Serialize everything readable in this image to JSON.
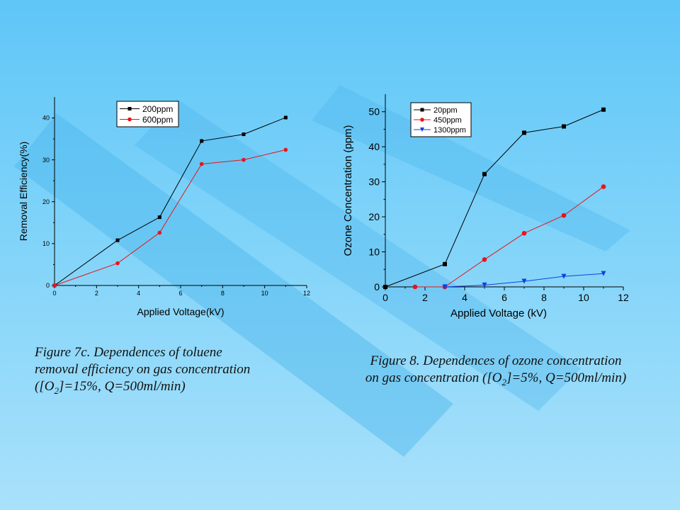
{
  "colors": {
    "black_series": "#000000",
    "red_series": "#e8141a",
    "blue_series": "#1040e0"
  },
  "captions": {
    "fig7": {
      "line1": "Figure 7c. Dependences of toluene",
      "line2": "removal efficiency on gas concentration",
      "line3_pre": "([O",
      "line3_sub": "2",
      "line3_post": "]=15%, Q=500ml/min)"
    },
    "fig8": {
      "line1": "Figure 8. Dependences of ozone concentration",
      "line2_pre": "on gas concentration ([O",
      "line2_sub": "2",
      "line2_post": "]=5%, Q=500ml/min)"
    }
  },
  "chart_data": [
    {
      "type": "line",
      "xlabel": "Applied Voltage(kV)",
      "ylabel": "Removal Efficiency(%)",
      "xlim": [
        0,
        12
      ],
      "ylim": [
        0,
        45
      ],
      "xticks": [
        0,
        2,
        4,
        6,
        8,
        10,
        12
      ],
      "yticks": [
        0,
        10,
        20,
        30,
        40
      ],
      "legend_position": "top-right",
      "series": [
        {
          "name": "200ppm",
          "marker": "square",
          "color": "#000000",
          "x": [
            0,
            3,
            5,
            7,
            9,
            11
          ],
          "y": [
            0,
            10.8,
            16.3,
            34.5,
            36.1,
            40.1
          ]
        },
        {
          "name": "600ppm",
          "marker": "circle",
          "color": "#e8141a",
          "x": [
            0,
            3,
            5,
            7,
            9,
            11
          ],
          "y": [
            0,
            5.3,
            12.6,
            29.0,
            30.0,
            32.4
          ]
        }
      ]
    },
    {
      "type": "line",
      "xlabel": "Applied Voltage (kV)",
      "ylabel": "Ozone Concentration (ppm)",
      "xlim": [
        0,
        12
      ],
      "ylim": [
        0,
        55
      ],
      "xticks": [
        0,
        2,
        4,
        6,
        8,
        10,
        12
      ],
      "yticks": [
        0,
        10,
        20,
        30,
        40,
        50
      ],
      "legend_position": "top-left",
      "series": [
        {
          "name": "20ppm",
          "marker": "square",
          "color": "#000000",
          "x": [
            0,
            3,
            5,
            7,
            9,
            11
          ],
          "y": [
            0,
            6.5,
            32.2,
            44.0,
            45.8,
            50.6
          ]
        },
        {
          "name": "450ppm",
          "marker": "circle",
          "color": "#e8141a",
          "x": [
            1.5,
            3,
            5,
            7,
            9,
            11
          ],
          "y": [
            0,
            0,
            7.8,
            15.3,
            20.4,
            28.6
          ]
        },
        {
          "name": "1300ppm",
          "marker": "triangle-down",
          "color": "#1040e0",
          "x": [
            3,
            5,
            7,
            9,
            11
          ],
          "y": [
            0,
            0.5,
            1.6,
            3.0,
            3.8
          ]
        }
      ]
    }
  ]
}
